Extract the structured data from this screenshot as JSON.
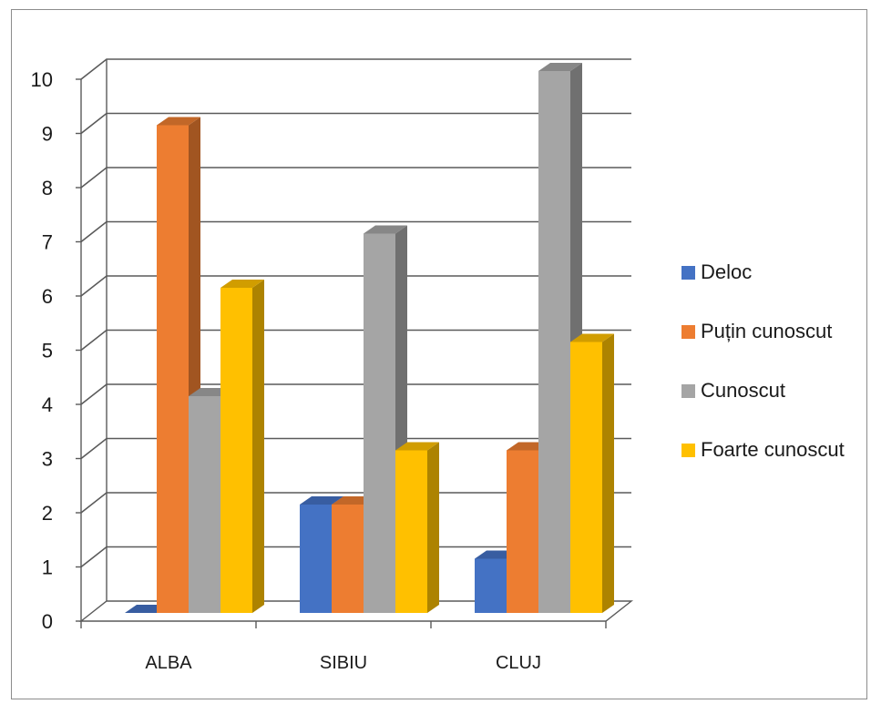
{
  "chart_data": {
    "type": "bar",
    "categories": [
      "ALBA",
      "SIBIU",
      "CLUJ"
    ],
    "series": [
      {
        "name": "Deloc",
        "values": [
          0,
          2,
          1
        ],
        "color": "#4472c4"
      },
      {
        "name": "Puțin cunoscut",
        "values": [
          9,
          2,
          3
        ],
        "color": "#ed7d31"
      },
      {
        "name": "Cunoscut",
        "values": [
          4,
          7,
          10
        ],
        "color": "#a5a5a5"
      },
      {
        "name": "Foarte cunoscut",
        "values": [
          6,
          3,
          5
        ],
        "color": "#ffc000"
      }
    ],
    "yticks": [
      "0",
      "1",
      "2",
      "3",
      "4",
      "5",
      "6",
      "7",
      "8",
      "9",
      "10"
    ],
    "ylim": [
      0,
      10
    ],
    "grid": true,
    "legend_position": "right",
    "style": "3d-column"
  }
}
